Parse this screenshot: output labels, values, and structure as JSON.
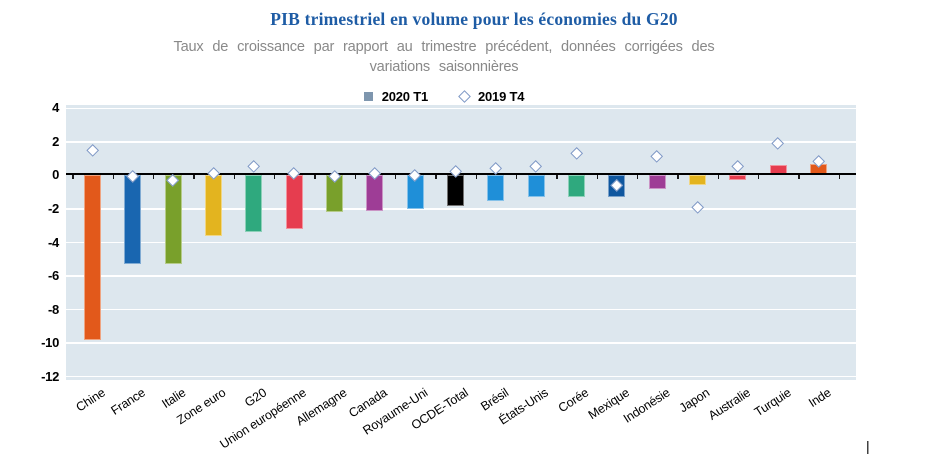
{
  "title": {
    "text": "PIB trimestriel en volume pour les économies du G20",
    "color": "#1E5CA5"
  },
  "subtitle": {
    "line1": "Taux de croissance par rapport au trimestre précédent, données corrigées des",
    "line2": "variations  saisonnières",
    "color": "#898989"
  },
  "legend": {
    "items": [
      {
        "label": "2020 T1",
        "marker": "square",
        "marker_color": "#7E96AE"
      },
      {
        "label": "2019 T4",
        "marker": "diamond-outline",
        "marker_color": "#7D97C5"
      }
    ]
  },
  "chart_data": {
    "type": "bar",
    "title": "PIB trimestriel en volume pour les économies du G20",
    "subtitle": "Taux de croissance par rapport au trimestre précédent, données corrigées des variations saisonnières",
    "categories": [
      "Chine",
      "France",
      "Italie",
      "Zone euro",
      "G20",
      "Union européenne",
      "Allemagne",
      "Canada",
      "Royaume-Uni",
      "OCDE-Total",
      "Brésil",
      "États-Unis",
      "Corée",
      "Mexique",
      "Indonésie",
      "Japon",
      "Australie",
      "Turquie",
      "Inde"
    ],
    "series": [
      {
        "name": "2020 T1",
        "type": "bar",
        "values": [
          -9.8,
          -5.3,
          -5.3,
          -3.6,
          -3.4,
          -3.2,
          -2.2,
          -2.1,
          -2.0,
          -1.8,
          -1.5,
          -1.3,
          -1.3,
          -1.3,
          -0.8,
          -0.6,
          -0.3,
          0.6,
          0.7
        ]
      },
      {
        "name": "2019 T4",
        "type": "scatter",
        "marker": "diamond",
        "values": [
          1.5,
          -0.1,
          -0.3,
          0.1,
          0.5,
          0.1,
          -0.1,
          0.1,
          0.0,
          0.2,
          0.4,
          0.5,
          1.3,
          -0.6,
          1.1,
          -1.9,
          0.5,
          1.9,
          0.8
        ]
      }
    ],
    "bar_colors": [
      "#E2591B",
      "#1966B0",
      "#79A02B",
      "#E3B41F",
      "#2FA97E",
      "#E63D4F",
      "#79A02B",
      "#9E3D96",
      "#1F8FD8",
      "#000000",
      "#1F8FD8",
      "#1F8FD8",
      "#2FA97E",
      "#0F579F",
      "#9E3D96",
      "#E3B41F",
      "#E63D4F",
      "#E63D4F",
      "#E2591B"
    ],
    "ylim": [
      -12,
      4
    ],
    "ytick_labels": [
      "4",
      "2",
      "0",
      "-2",
      "-4",
      "-6",
      "-8",
      "-10",
      "-12"
    ],
    "ytick_values": [
      4,
      2,
      0,
      -2,
      -4,
      -6,
      -8,
      -10,
      -12
    ],
    "grid": "horizontal",
    "plot_bg": "#DDE7EE",
    "gridline_color": "#FFFFFF",
    "diamond_fill": "#FFFFFF",
    "diamond_border": "#7D97C5",
    "legend_position": "top-center"
  },
  "misc": {
    "cursor_mark": "|"
  }
}
